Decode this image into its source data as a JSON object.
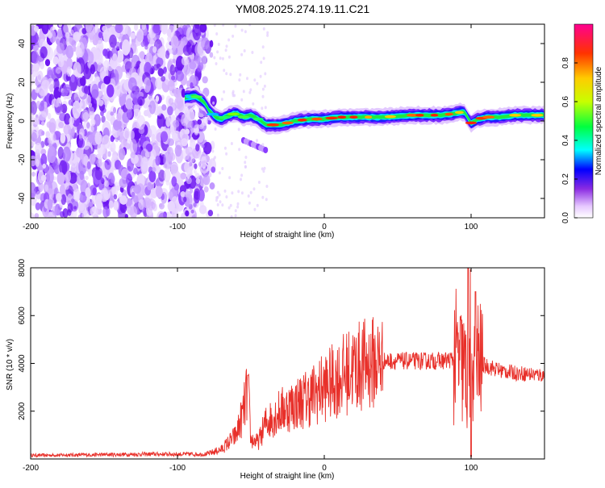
{
  "title": "YM08.2025.274.19.11.C21",
  "colorbar": {
    "label": "Normalized spectral amplitude",
    "ticks": [
      "0.0",
      "0.2",
      "0.4",
      "0.6",
      "0.8"
    ],
    "tick_values": [
      0.0,
      0.2,
      0.4,
      0.6,
      0.8
    ],
    "range": [
      0,
      1
    ]
  },
  "chart_data": [
    {
      "type": "heatmap",
      "name": "spectrogram",
      "xlabel": "Height of straight line (km)",
      "ylabel": "Frequency (Hz)",
      "xlim": [
        -200,
        150
      ],
      "ylim": [
        -50,
        50
      ],
      "xticks": [
        -200,
        -100,
        0,
        100
      ],
      "yticks": [
        -40,
        -20,
        0,
        20,
        40
      ],
      "ytick_labels": [
        "-40",
        "-20",
        "0",
        "20",
        "40"
      ],
      "xtick_labels": [
        "-200",
        "-100",
        "0",
        "100"
      ],
      "noise_region_x": [
        -200,
        -77
      ],
      "ridge": {
        "x": [
          -95,
          -88,
          -82,
          -78,
          -74,
          -70,
          -65,
          -60,
          -55,
          -50,
          -45,
          -40,
          -30,
          -20,
          -10,
          0,
          10,
          20,
          40,
          60,
          80,
          90,
          95,
          100,
          105,
          110,
          120,
          130,
          150
        ],
        "freq": [
          12,
          13,
          10,
          5,
          2,
          1,
          3,
          4,
          2,
          3,
          1,
          -2,
          -2,
          0,
          1,
          1,
          2,
          2,
          2,
          3,
          3,
          4,
          5,
          -1,
          1,
          2,
          2,
          3,
          3
        ]
      },
      "secondary_feature": {
        "x": [
          -55,
          -40
        ],
        "freq": [
          -10,
          -15
        ]
      }
    },
    {
      "type": "line",
      "name": "snr",
      "xlabel": "Height of straight line (km)",
      "ylabel": "SNR (10 * v/v)",
      "xlim": [
        -200,
        150
      ],
      "ylim": [
        0,
        8000
      ],
      "xticks": [
        -200,
        -100,
        0,
        100
      ],
      "xtick_labels": [
        "-200",
        "-100",
        "0",
        "100"
      ],
      "yticks": [
        2000,
        4000,
        6000,
        8000
      ],
      "ytick_labels": [
        "2000",
        "4000",
        "6000",
        "8000"
      ],
      "color": "#e8302a",
      "envelope": {
        "x": [
          -200,
          -120,
          -80,
          -70,
          -60,
          -55,
          -52,
          -50,
          -45,
          -40,
          -30,
          -20,
          -10,
          0,
          10,
          20,
          30,
          40,
          60,
          80,
          90,
          95,
          98,
          100,
          102,
          105,
          110,
          120,
          130,
          140,
          150
        ],
        "y": [
          150,
          200,
          200,
          400,
          1000,
          2000,
          3000,
          800,
          700,
          1500,
          2000,
          2300,
          2600,
          3000,
          3400,
          3800,
          4000,
          4100,
          4100,
          4100,
          4200,
          3800,
          3000,
          5500,
          3500,
          4000,
          3900,
          3700,
          3600,
          3550,
          3500
        ]
      },
      "peaks": [
        {
          "x": -52,
          "y": 3500
        },
        {
          "x": 98,
          "y": 8000
        },
        {
          "x": 103,
          "y": 7000
        },
        {
          "x": 100,
          "y": 100
        }
      ]
    }
  ]
}
